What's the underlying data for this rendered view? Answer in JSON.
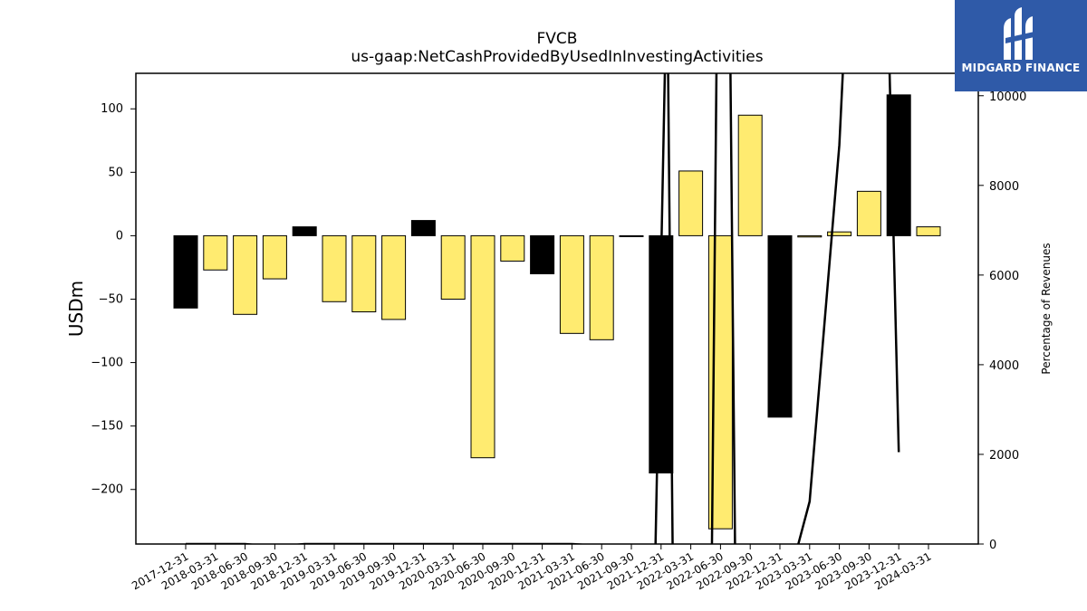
{
  "chart_data": {
    "type": "bar",
    "title": "FVCB",
    "subtitle": "us-gaap:NetCashProvidedByUsedInInvestingActivities",
    "ylabel": "USDm",
    "y2label": "Percentage of Revenues",
    "ylim": [
      -243,
      128
    ],
    "y2lim": [
      0,
      10500
    ],
    "yticks": [
      100,
      50,
      0,
      -50,
      -100,
      -150,
      -200
    ],
    "y2ticks": [
      0,
      2000,
      4000,
      6000,
      8000,
      10000
    ],
    "categories": [
      "2017-12-31",
      "2018-03-31",
      "2018-06-30",
      "2018-09-30",
      "2018-12-31",
      "2019-03-31",
      "2019-06-30",
      "2019-09-30",
      "2019-12-31",
      "2020-03-31",
      "2020-06-30",
      "2020-09-30",
      "2020-12-31",
      "2021-03-31",
      "2021-06-30",
      "2021-09-30",
      "2021-12-31",
      "2022-03-31",
      "2022-06-30",
      "2022-09-30",
      "2022-12-31",
      "2023-03-31",
      "2023-06-30",
      "2023-09-30",
      "2023-12-31",
      "2024-03-31"
    ],
    "values": [
      -57,
      -27,
      -62,
      -34,
      7,
      -52,
      -60,
      -66,
      12,
      -50,
      -175,
      -20,
      -30,
      -77,
      -82,
      0,
      -187,
      51,
      -231,
      95,
      -143,
      -1,
      3,
      35,
      111,
      7
    ],
    "colors": [
      "#000000",
      "#ffeb70",
      "#ffeb70",
      "#ffeb70",
      "#000000",
      "#ffeb70",
      "#ffeb70",
      "#ffeb70",
      "#000000",
      "#ffeb70",
      "#ffeb70",
      "#ffeb70",
      "#000000",
      "#ffeb70",
      "#ffeb70",
      "#ffeb70",
      "#000000",
      "#ffeb70",
      "#ffeb70",
      "#ffeb70",
      "#000000",
      "#ffeb70",
      "#ffeb70",
      "#ffeb70",
      "#000000",
      "#ffeb70"
    ],
    "line_series": {
      "name": "Percentage of Revenues",
      "points": [
        [
          0,
          0
        ],
        [
          1,
          0
        ],
        [
          2,
          0
        ],
        [
          3,
          -60
        ],
        [
          4,
          0
        ],
        [
          5,
          0
        ],
        [
          6,
          0
        ],
        [
          7,
          0
        ],
        [
          8,
          0
        ],
        [
          9,
          0
        ],
        [
          10,
          0
        ],
        [
          11,
          0
        ],
        [
          12,
          0
        ],
        [
          13,
          0
        ],
        [
          14,
          -40
        ],
        [
          15,
          -60
        ],
        [
          15.8,
          -500
        ],
        [
          16.2,
          13000
        ],
        [
          16.4,
          -800
        ],
        [
          17.7,
          -800
        ],
        [
          17.9,
          13000
        ],
        [
          18.3,
          13000
        ],
        [
          18.5,
          -800
        ],
        [
          20.3,
          -800
        ],
        [
          21,
          950
        ],
        [
          22,
          8900
        ],
        [
          22.3,
          13000
        ],
        [
          23.6,
          13000
        ],
        [
          24,
          2050
        ]
      ]
    },
    "grid": false
  },
  "logo": {
    "text": "MIDGARD FINANCE",
    "bg": "#2f5aa8"
  }
}
